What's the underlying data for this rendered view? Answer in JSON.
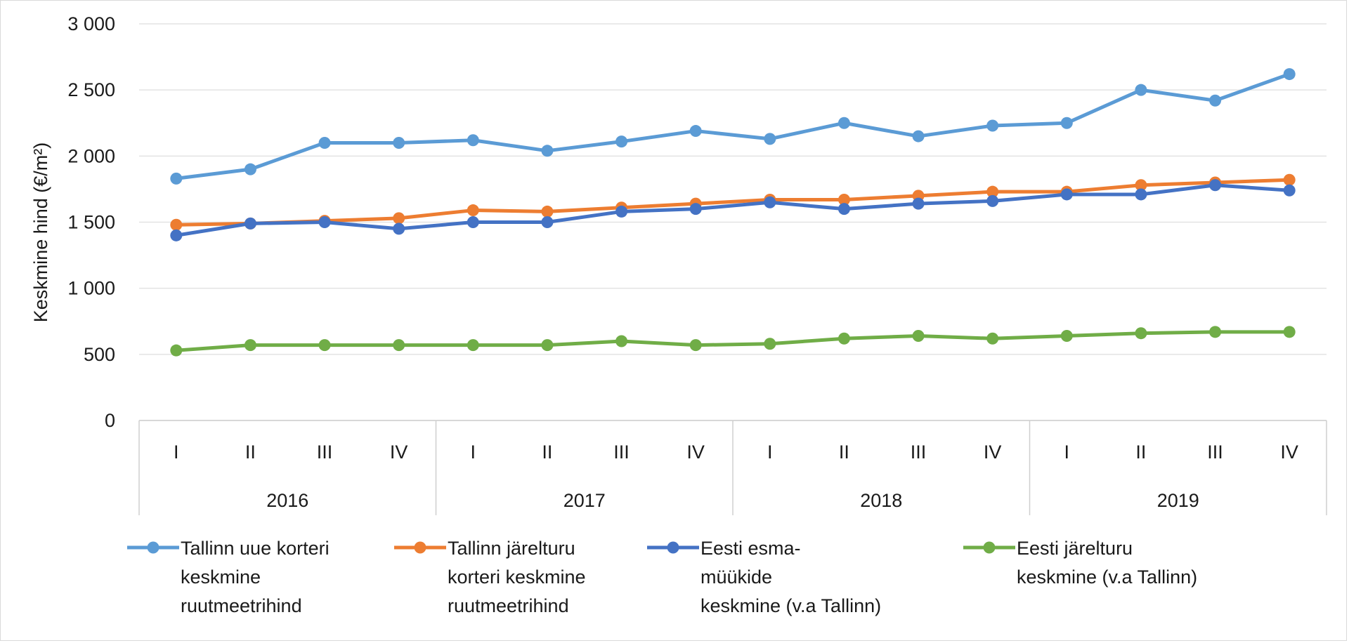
{
  "chart_data": {
    "type": "line",
    "title": "",
    "xlabel": "",
    "ylabel": "Keskmine hind (€/m²)",
    "ylim": [
      0,
      3000
    ],
    "y_ticks": [
      {
        "value": 0,
        "label": "0"
      },
      {
        "value": 500,
        "label": "500"
      },
      {
        "value": 1000,
        "label": "1 000"
      },
      {
        "value": 1500,
        "label": "1 500"
      },
      {
        "value": 2000,
        "label": "2 000"
      },
      {
        "value": 2500,
        "label": "2 500"
      },
      {
        "value": 3000,
        "label": "3 000"
      }
    ],
    "grid": true,
    "legend_position": "bottom",
    "years": [
      "2016",
      "2017",
      "2018",
      "2019"
    ],
    "quarters": [
      "I",
      "II",
      "III",
      "IV"
    ],
    "categories": [
      "2016 I",
      "2016 II",
      "2016 III",
      "2016 IV",
      "2017 I",
      "2017 II",
      "2017 III",
      "2017 IV",
      "2018 I",
      "2018 II",
      "2018 III",
      "2018 IV",
      "2019 I",
      "2019 II",
      "2019 III",
      "2019 IV"
    ],
    "series": [
      {
        "name": "Tallinn uue korteri keskmine ruutmeetrihind",
        "legend_lines": [
          "Tallinn uue korteri",
          "keskmine",
          "ruutmeetrihind"
        ],
        "color": "#5b9bd5",
        "values": [
          1830,
          1900,
          2100,
          2100,
          2120,
          2040,
          2110,
          2190,
          2130,
          2250,
          2150,
          2230,
          2250,
          2500,
          2420,
          2620
        ]
      },
      {
        "name": "Tallinn järelturu korteri keskmine ruutmeetrihind",
        "legend_lines": [
          "Tallinn järelturu",
          "korteri keskmine",
          "ruutmeetrihind"
        ],
        "color": "#ed7d31",
        "values": [
          1480,
          1490,
          1510,
          1530,
          1590,
          1580,
          1610,
          1640,
          1670,
          1670,
          1700,
          1730,
          1730,
          1780,
          1800,
          1820
        ]
      },
      {
        "name": "Eesti esma-müükide keskmine (v.a Tallinn)",
        "legend_lines": [
          "Eesti esma-",
          "müükide",
          "keskmine (v.a Tallinn)"
        ],
        "color": "#4472c4",
        "values": [
          1400,
          1490,
          1500,
          1450,
          1500,
          1500,
          1580,
          1600,
          1650,
          1600,
          1640,
          1660,
          1710,
          1710,
          1780,
          1740
        ]
      },
      {
        "name": "Eesti järelturu keskmine (v.a Tallinn)",
        "legend_lines": [
          "Eesti järelturu",
          "keskmine (v.a Tallinn)"
        ],
        "color": "#70ad47",
        "values": [
          530,
          570,
          570,
          570,
          570,
          570,
          600,
          570,
          580,
          620,
          640,
          620,
          640,
          660,
          670,
          670
        ]
      }
    ]
  }
}
